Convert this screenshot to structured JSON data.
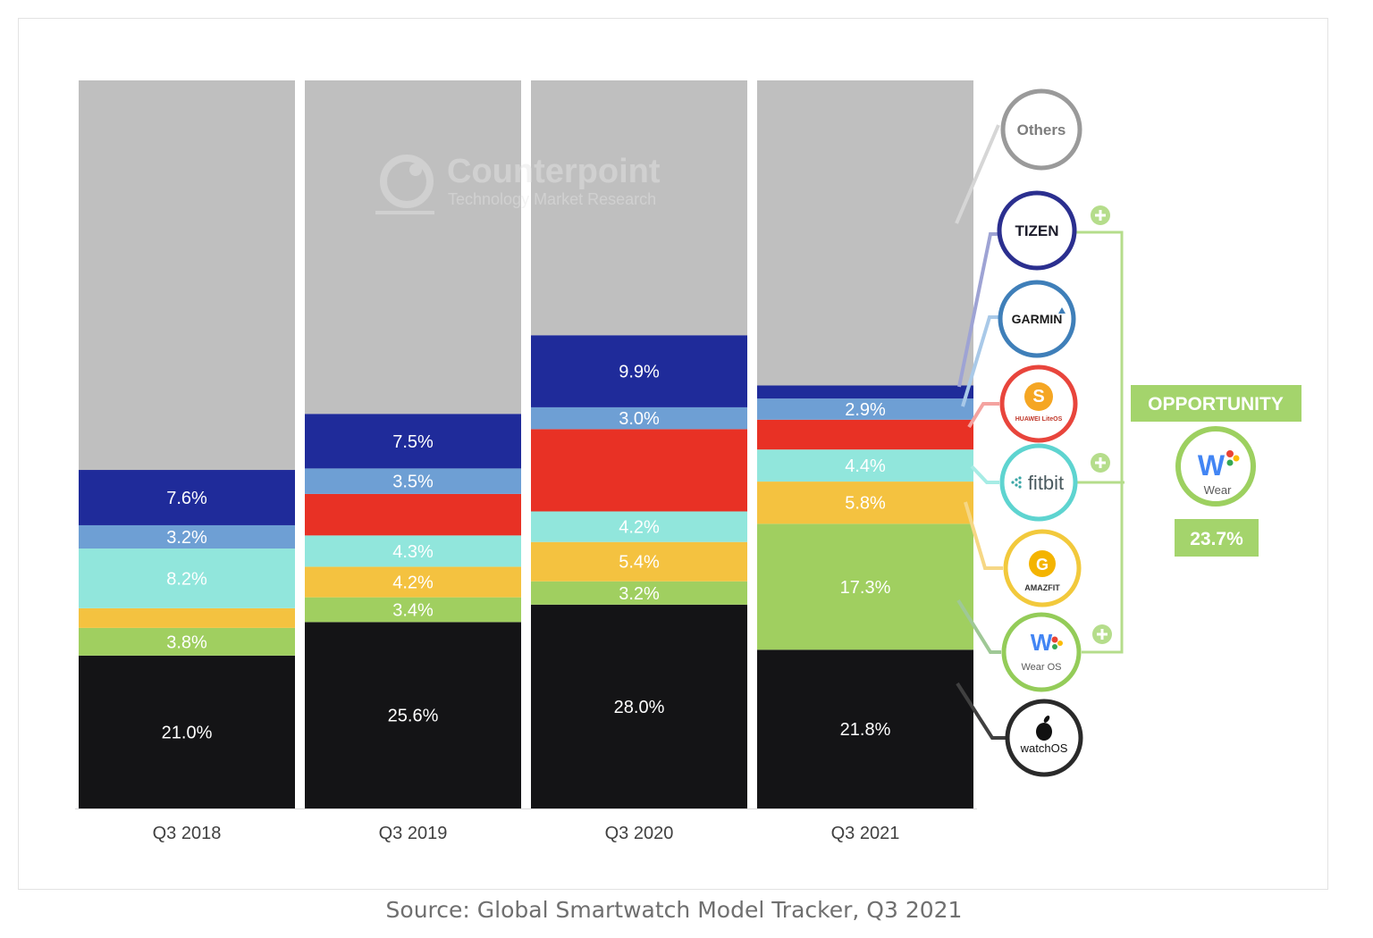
{
  "chart_data": {
    "type": "bar",
    "stacked": true,
    "categories": [
      "Q3 2018",
      "Q3 2019",
      "Q3 2020",
      "Q3 2021"
    ],
    "series": [
      {
        "name": "watchOS",
        "color": "#141416",
        "values": [
          21.0,
          25.6,
          28.0,
          21.8
        ],
        "labels": [
          "21.0%",
          "25.6%",
          "28.0%",
          "21.8%"
        ]
      },
      {
        "name": "Wear OS",
        "color": "#a0cf60",
        "values": [
          3.8,
          3.4,
          3.2,
          17.3
        ],
        "labels": [
          "3.8%",
          "3.4%",
          "3.2%",
          "17.3%"
        ]
      },
      {
        "name": "Amazfit",
        "color": "#f4c240",
        "values": [
          2.7,
          4.2,
          5.4,
          5.8
        ],
        "labels": [
          "",
          "4.2%",
          "5.4%",
          "5.8%"
        ]
      },
      {
        "name": "fitbit",
        "color": "#91e6dc",
        "values": [
          8.2,
          4.3,
          4.2,
          4.4
        ],
        "labels": [
          "8.2%",
          "4.3%",
          "4.2%",
          "4.4%"
        ]
      },
      {
        "name": "Huawei LiteOS",
        "color": "#e83125",
        "values": [
          0,
          5.7,
          11.3,
          4.1
        ],
        "labels": [
          "",
          "",
          "",
          ""
        ]
      },
      {
        "name": "Garmin",
        "color": "#6e9fd4",
        "values": [
          3.2,
          3.5,
          3.0,
          2.9
        ],
        "labels": [
          "3.2%",
          "3.5%",
          "3.0%",
          "2.9%"
        ]
      },
      {
        "name": "Tizen",
        "color": "#1f2b9a",
        "values": [
          7.6,
          7.5,
          9.9,
          1.8
        ],
        "labels": [
          "7.6%",
          "7.5%",
          "9.9%",
          ""
        ]
      },
      {
        "name": "Others",
        "color": "#bfbfbf",
        "values": [
          53.5,
          45.8,
          35.0,
          41.9
        ],
        "labels": [
          "",
          "",
          "",
          ""
        ]
      }
    ],
    "ylim": [
      0,
      100
    ],
    "grid": false,
    "legend_position": "right",
    "xlabel": "",
    "ylabel": "",
    "title": ""
  },
  "legend_icons": [
    {
      "key": "others",
      "text": "Others",
      "icon": "others-circle",
      "ring": "#9a9a9a"
    },
    {
      "key": "tizen",
      "text": "TIZEN",
      "icon": "tizen-logo",
      "ring": "#2b2f8f"
    },
    {
      "key": "garmin",
      "text": "GARMIN",
      "icon": "garmin-logo",
      "ring": "#3f7fb9"
    },
    {
      "key": "huawei",
      "text": "HUAWEI LiteOS",
      "icon": "huawei-liteos-logo",
      "ring": "#e8453c"
    },
    {
      "key": "fitbit",
      "text": "fitbit",
      "icon": "fitbit-logo",
      "ring": "#5ed4d0"
    },
    {
      "key": "amazfit",
      "text": "AMAZFIT",
      "icon": "amazfit-logo",
      "ring": "#f2c93c"
    },
    {
      "key": "wearos",
      "text": "Wear OS",
      "icon": "wear-os-logo",
      "ring": "#94cc59"
    },
    {
      "key": "watchos",
      "text": "watchOS",
      "icon": "apple-logo",
      "ring": "#2a2a2a"
    }
  ],
  "opportunity": {
    "title": "OPPORTUNITY",
    "logo_text": "Wear",
    "value": "23.7%",
    "color": "#a4d46c"
  },
  "watermark": {
    "brand": "Counterpoint",
    "tagline": "Technology Market Research"
  },
  "source": "Source: Global Smartwatch Model Tracker, Q3 2021"
}
